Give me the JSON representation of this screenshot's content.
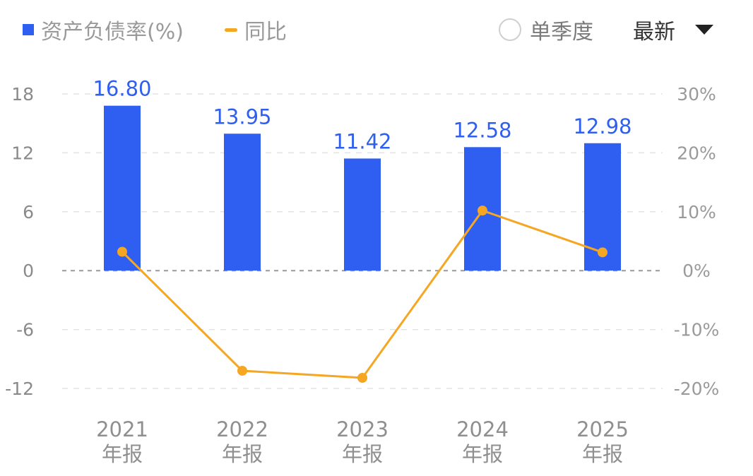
{
  "legend": {
    "bar_label": "资产负债率(%)",
    "line_label": "同比"
  },
  "controls": {
    "toggle_label": "单季度",
    "dropdown_label": "最新"
  },
  "colors": {
    "bar": "#2f5ff0",
    "line": "#f5a623",
    "grid": "#e3e3e3",
    "zero": "#9a9a9a"
  },
  "chart_data": {
    "type": "bar",
    "categories": [
      [
        "2021",
        "年报"
      ],
      [
        "2022",
        "年报"
      ],
      [
        "2023",
        "年报"
      ],
      [
        "2024",
        "年报"
      ],
      [
        "2025",
        "年报"
      ]
    ],
    "series": [
      {
        "name": "资产负债率(%)",
        "type": "bar",
        "axis": "left",
        "values": [
          16.8,
          13.95,
          11.42,
          12.58,
          12.98
        ],
        "labels": [
          "16.80",
          "13.95",
          "11.42",
          "12.58",
          "12.98"
        ]
      },
      {
        "name": "同比",
        "type": "line",
        "axis": "right",
        "values": [
          3.2,
          -17.0,
          -18.2,
          10.2,
          3.1
        ]
      }
    ],
    "y_left": {
      "ticks": [
        18,
        12,
        6,
        0,
        -6,
        -12
      ],
      "range": [
        -12,
        18
      ]
    },
    "y_right": {
      "ticks": [
        "30%",
        "20%",
        "10%",
        "0%",
        "-10%",
        "-20%"
      ],
      "range": [
        -20,
        30
      ]
    },
    "grid": true,
    "legend_position": "top-left"
  }
}
